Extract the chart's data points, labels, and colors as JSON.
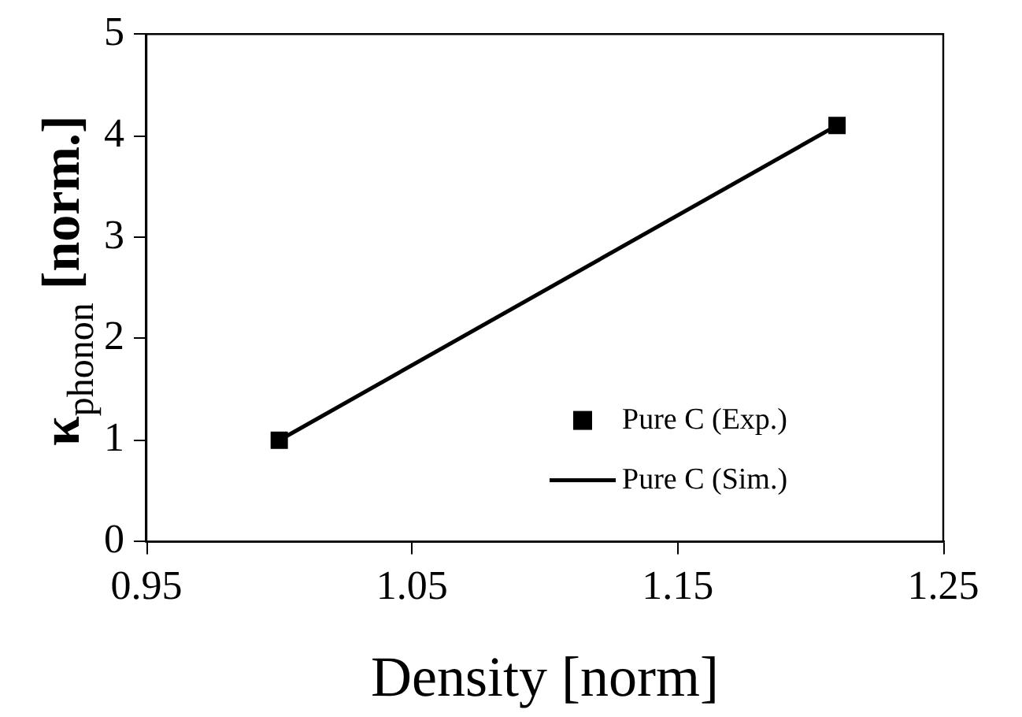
{
  "chart_data": {
    "type": "scatter",
    "xlabel": "Density [norm]",
    "ylabel": "κ$_{phonon}$ [norm.]",
    "x": [
      1.0,
      1.21
    ],
    "xlim": [
      0.95,
      1.25
    ],
    "xticks": [
      {
        "value": 0.95,
        "label": "0.95"
      },
      {
        "value": 1.05,
        "label": "1.05"
      },
      {
        "value": 1.15,
        "label": "1.15"
      },
      {
        "value": 1.25,
        "label": "1.25"
      }
    ],
    "ylim": [
      0,
      5
    ],
    "yticks": [
      0,
      1,
      2,
      3,
      4,
      5
    ],
    "grid": false,
    "legend": "bottom right",
    "series": [
      {
        "name": "Pure C (Exp.)",
        "marker": "square",
        "color": "#000000",
        "values": [
          1.0,
          4.1
        ]
      },
      {
        "name": "Pure C (Sim.)",
        "type": "line",
        "marker": "none",
        "line_style": "solid",
        "color": "#000000",
        "values": [
          1.0,
          4.1
        ]
      }
    ]
  }
}
